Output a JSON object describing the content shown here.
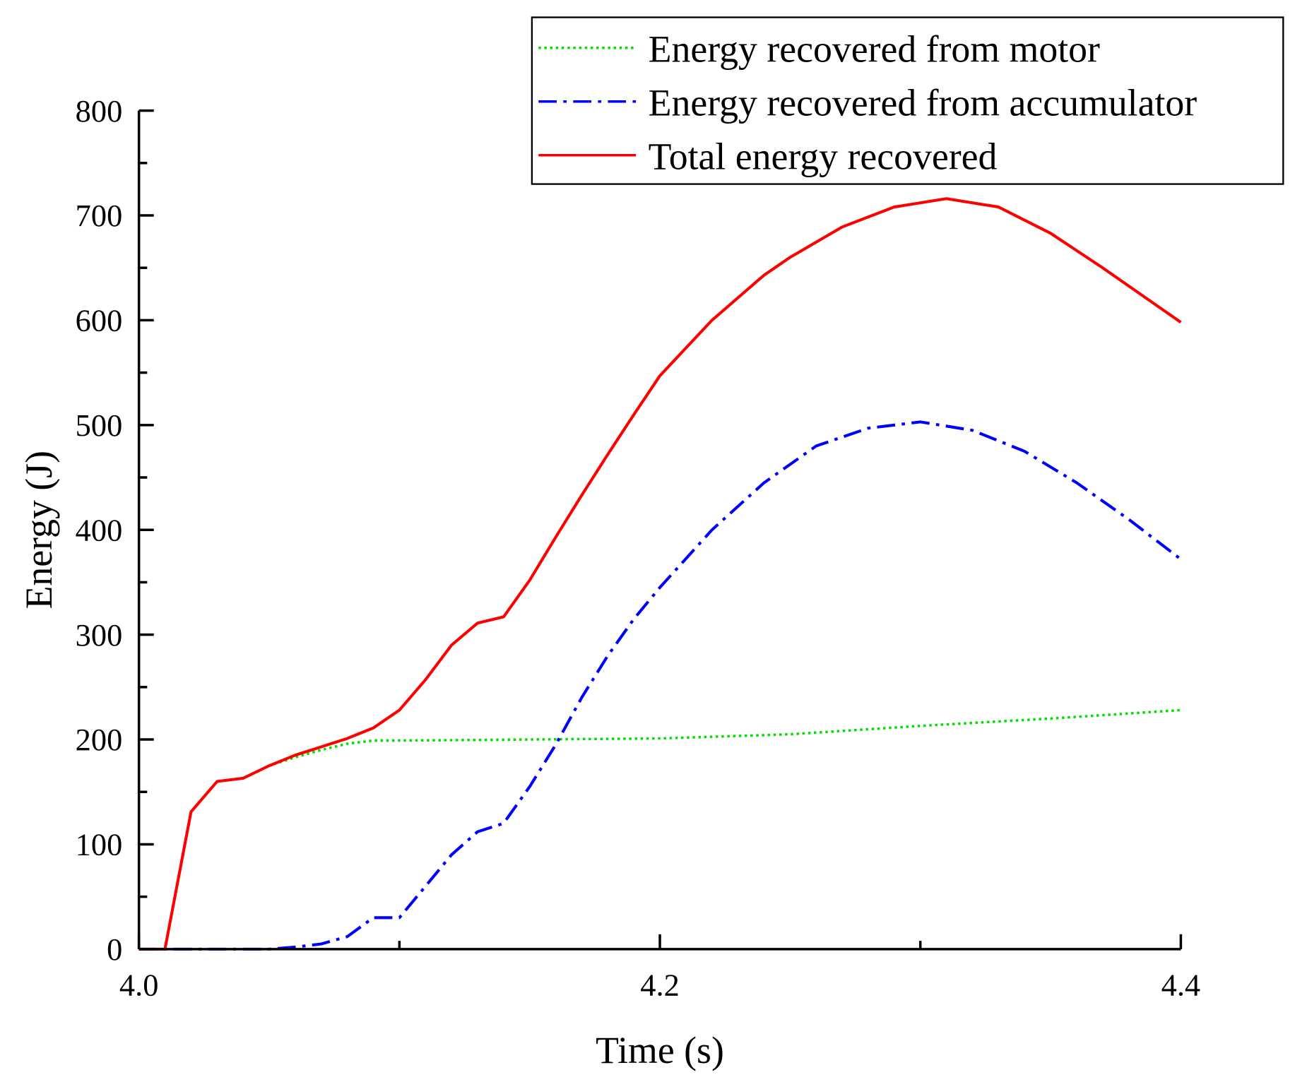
{
  "chart_data": {
    "type": "line",
    "xlabel": "Time (s)",
    "ylabel": "Energy (J)",
    "xlim": [
      4.0,
      4.4
    ],
    "ylim": [
      0,
      800
    ],
    "xticks": [
      "4.0",
      "4.2",
      "4.4"
    ],
    "xtick_values": [
      4.0,
      4.2,
      4.4
    ],
    "xminor": [
      4.1,
      4.3
    ],
    "yticks": [
      "0",
      "100",
      "200",
      "300",
      "400",
      "500",
      "600",
      "700",
      "800"
    ],
    "ytick_values": [
      0,
      100,
      200,
      300,
      400,
      500,
      600,
      700,
      800
    ],
    "grid": false,
    "legend_position": "top-right",
    "series": [
      {
        "name": "Energy recovered from motor",
        "color": "#00e000",
        "style": "dotted",
        "x": [
          4.0,
          4.01,
          4.02,
          4.03,
          4.04,
          4.05,
          4.06,
          4.07,
          4.08,
          4.09,
          4.1,
          4.15,
          4.2,
          4.25,
          4.3,
          4.35,
          4.4
        ],
        "y": [
          0,
          0,
          131,
          160,
          163,
          175,
          183,
          190,
          196,
          199,
          199,
          200,
          201,
          205,
          213,
          220,
          228
        ]
      },
      {
        "name": "Energy recovered from accumulator",
        "color": "#0000ff",
        "style": "dashdot",
        "x": [
          4.0,
          4.05,
          4.06,
          4.07,
          4.08,
          4.09,
          4.1,
          4.11,
          4.12,
          4.13,
          4.14,
          4.15,
          4.16,
          4.17,
          4.18,
          4.19,
          4.2,
          4.22,
          4.24,
          4.26,
          4.28,
          4.3,
          4.32,
          4.34,
          4.36,
          4.38,
          4.4
        ],
        "y": [
          0,
          0,
          2,
          5,
          12,
          30,
          30,
          60,
          90,
          112,
          120,
          155,
          195,
          240,
          280,
          315,
          345,
          400,
          445,
          480,
          497,
          503,
          495,
          475,
          445,
          410,
          372
        ]
      },
      {
        "name": "Total energy recovered",
        "color": "#ff0000",
        "style": "solid",
        "x": [
          4.0,
          4.01,
          4.02,
          4.03,
          4.04,
          4.05,
          4.06,
          4.07,
          4.08,
          4.09,
          4.1,
          4.11,
          4.12,
          4.13,
          4.14,
          4.15,
          4.16,
          4.17,
          4.18,
          4.19,
          4.2,
          4.22,
          4.24,
          4.25,
          4.27,
          4.29,
          4.31,
          4.33,
          4.35,
          4.37,
          4.4
        ],
        "y": [
          0,
          0,
          131,
          160,
          163,
          175,
          185,
          193,
          201,
          211,
          228,
          257,
          290,
          311,
          317,
          352,
          393,
          433,
          472,
          510,
          547,
          600,
          643,
          660,
          689,
          708,
          716,
          708,
          683,
          650,
          598
        ]
      }
    ]
  }
}
